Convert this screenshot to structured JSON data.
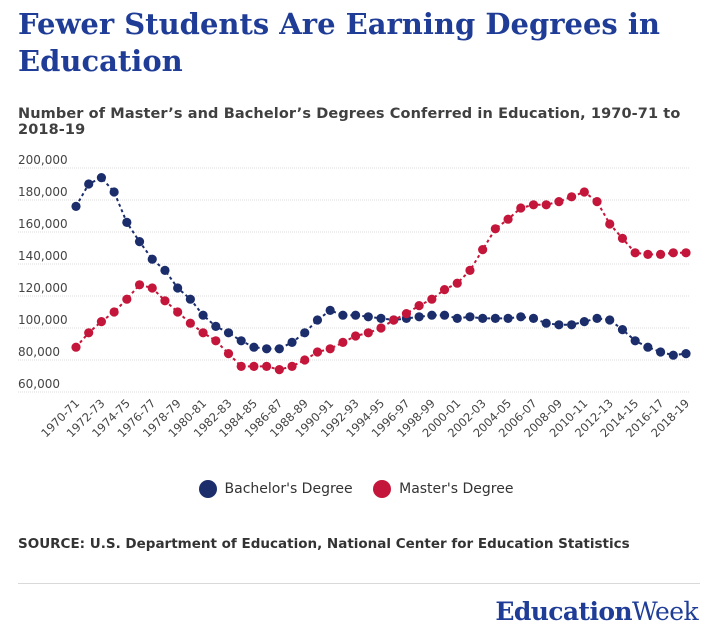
{
  "header": {
    "title": "Fewer Students Are Earning Degrees in Education",
    "subtitle": "Number of Master’s and Bachelor’s Degrees Conferred in Education, 1970-71 to 2018-19"
  },
  "legend": {
    "bachelor_label": "Bachelor's Degree",
    "master_label": "Master's Degree"
  },
  "footer": {
    "source": "SOURCE: U.S. Department of Education, National Center for Education Statistics",
    "brand_part1": "Education",
    "brand_part2": "Week"
  },
  "colors": {
    "bachelor": "#1b2d6b",
    "master": "#c4163a",
    "title": "#1f3d97",
    "grid": "#dcdcdc"
  },
  "chart_data": {
    "type": "line",
    "title": "Number of Master’s and Bachelor’s Degrees Conferred in Education, 1970-71 to 2018-19",
    "xlabel": "",
    "ylabel": "",
    "ylim": [
      60000,
      200000
    ],
    "yticks": [
      60000,
      80000,
      100000,
      120000,
      140000,
      160000,
      180000,
      200000
    ],
    "ytick_labels": [
      "60,000",
      "80,000",
      "100,000",
      "120,000",
      "140,000",
      "160,000",
      "180,000",
      "200,000"
    ],
    "grid": true,
    "legend_position": "bottom-center",
    "categories": [
      "1970-71",
      "1971-72",
      "1972-73",
      "1973-74",
      "1974-75",
      "1975-76",
      "1976-77",
      "1977-78",
      "1978-79",
      "1979-80",
      "1980-81",
      "1981-82",
      "1982-83",
      "1983-84",
      "1984-85",
      "1985-86",
      "1986-87",
      "1987-88",
      "1988-89",
      "1989-90",
      "1990-91",
      "1991-92",
      "1992-93",
      "1993-94",
      "1994-95",
      "1995-96",
      "1996-97",
      "1997-98",
      "1998-99",
      "1999-00",
      "2000-01",
      "2001-02",
      "2002-03",
      "2003-04",
      "2004-05",
      "2005-06",
      "2006-07",
      "2007-08",
      "2008-09",
      "2009-10",
      "2010-11",
      "2011-12",
      "2012-13",
      "2013-14",
      "2014-15",
      "2015-16",
      "2016-17",
      "2017-18",
      "2018-19"
    ],
    "tick_labels": [
      "1970-71",
      "1972-73",
      "1974-75",
      "1976-77",
      "1978-79",
      "1980-81",
      "1982-83",
      "1984-85",
      "1986-87",
      "1988-89",
      "1990-91",
      "1992-93",
      "1994-95",
      "1996-97",
      "1998-99",
      "2000-01",
      "2002-03",
      "2004-05",
      "2006-07",
      "2008-09",
      "2010-11",
      "2012-13",
      "2014-15",
      "2016-17",
      "2018-19"
    ],
    "series": [
      {
        "name": "Bachelor's Degree",
        "values": [
          176000,
          190000,
          194000,
          185000,
          166000,
          154000,
          143000,
          136000,
          125000,
          118000,
          108000,
          101000,
          97000,
          92000,
          88000,
          87000,
          87000,
          91000,
          97000,
          105000,
          111000,
          108000,
          108000,
          107000,
          106000,
          105000,
          106000,
          107000,
          108000,
          108000,
          106000,
          107000,
          106000,
          106000,
          106000,
          107000,
          106000,
          103000,
          102000,
          102000,
          104000,
          106000,
          105000,
          99000,
          92000,
          88000,
          85000,
          83000,
          84000
        ]
      },
      {
        "name": "Master's Degree",
        "values": [
          88000,
          97000,
          104000,
          110000,
          118000,
          127000,
          125000,
          117000,
          110000,
          103000,
          97000,
          92000,
          84000,
          76000,
          76000,
          76000,
          74000,
          76000,
          80000,
          85000,
          87000,
          91000,
          95000,
          97000,
          100000,
          105000,
          109000,
          114000,
          118000,
          124000,
          128000,
          136000,
          149000,
          162000,
          168000,
          175000,
          177000,
          177000,
          179000,
          182000,
          185000,
          179000,
          165000,
          156000,
          147000,
          146000,
          146000,
          147000,
          147000
        ]
      }
    ]
  }
}
